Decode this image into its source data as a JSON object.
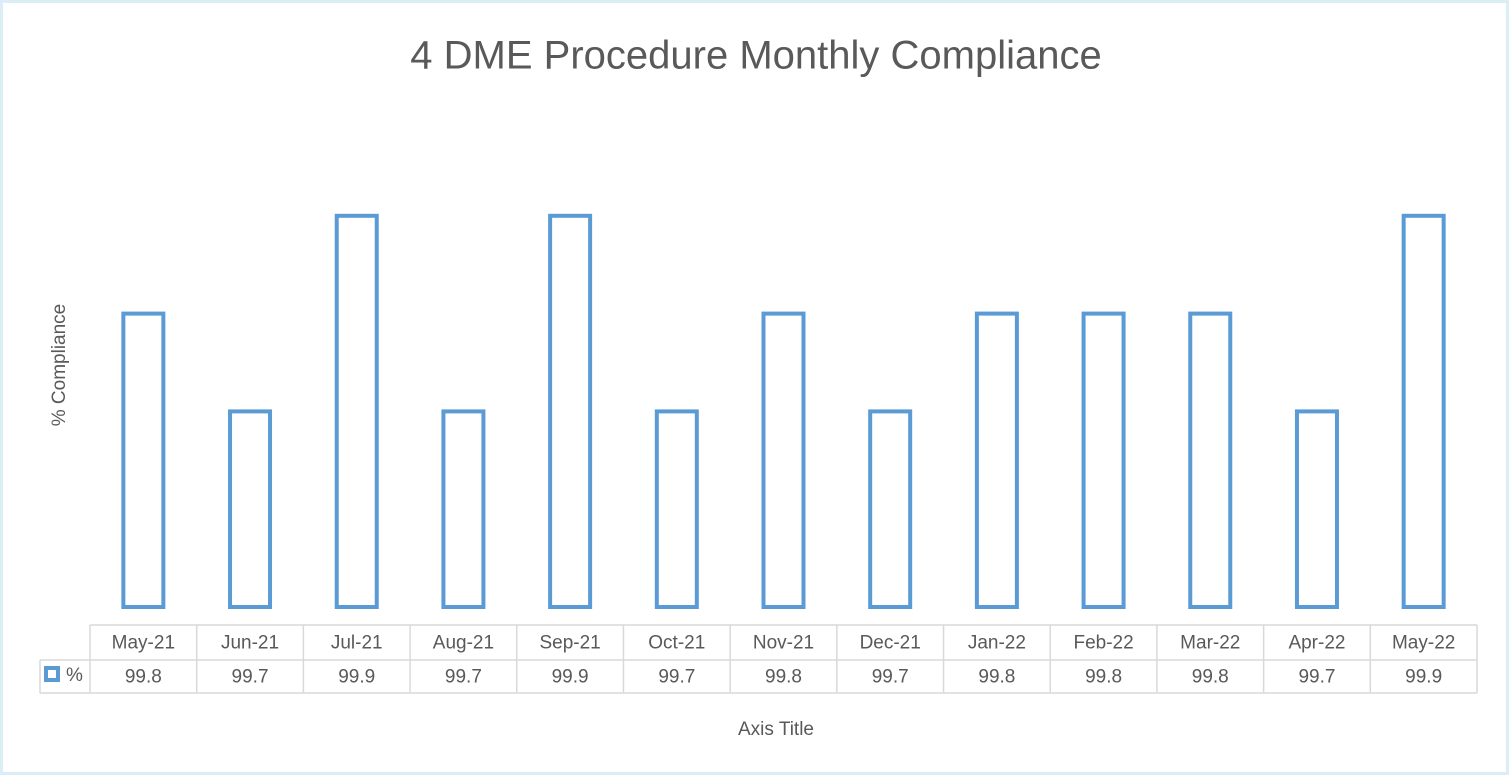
{
  "chart_data": {
    "type": "bar",
    "title": "4 DME Procedure Monthly Compliance",
    "y_label": "% Compliance",
    "x_label": "Axis Title",
    "categories": [
      "May-21",
      "Jun-21",
      "Jul-21",
      "Aug-21",
      "Sep-21",
      "Oct-21",
      "Nov-21",
      "Dec-21",
      "Jan-22",
      "Feb-22",
      "Mar-22",
      "Apr-22",
      "May-22"
    ],
    "series": [
      {
        "name": "%",
        "color": "#5b9bd5",
        "values": [
          99.8,
          99.7,
          99.9,
          99.7,
          99.9,
          99.7,
          99.8,
          99.7,
          99.8,
          99.8,
          99.8,
          99.7,
          99.9
        ]
      }
    ],
    "ylim": [
      99.5,
      100
    ],
    "data_table": true
  }
}
